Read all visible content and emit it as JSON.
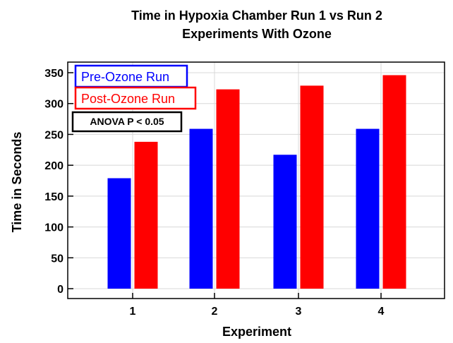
{
  "chart_data": {
    "type": "bar",
    "title": "Time in Hypoxia Chamber Run 1 vs Run 2",
    "subtitle": "Experiments With Ozone",
    "xlabel": "Experiment",
    "ylabel": "Time in Seconds",
    "categories": [
      "1",
      "2",
      "3",
      "4"
    ],
    "series": [
      {
        "name": "Pre-Ozone Run",
        "color": "#0000ff",
        "values": [
          179,
          259,
          217,
          259
        ]
      },
      {
        "name": "Post-Ozone Run",
        "color": "#ff0000",
        "values": [
          238,
          323,
          329,
          346
        ]
      }
    ],
    "ylim": [
      0,
      350
    ],
    "yticks": [
      0,
      50,
      100,
      150,
      200,
      250,
      300,
      350
    ],
    "grid": true,
    "legend_position": "top-left",
    "annotation": "ANOVA P < 0.05"
  }
}
